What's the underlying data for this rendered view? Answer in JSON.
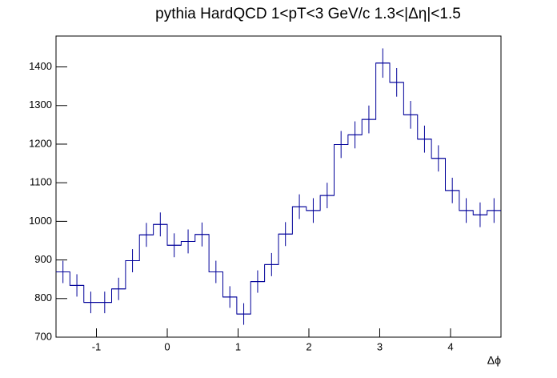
{
  "chart_data": {
    "type": "histogram",
    "title": "pythia HardQCD 1<pT<3 GeV/c 1.3<|Δη|<1.5",
    "x_label": "Δϕ",
    "bins": [
      -1.5708,
      -1.3744,
      -1.1781,
      -0.9817,
      -0.7854,
      -0.589,
      -0.3927,
      -0.1963,
      0,
      0.1963,
      0.3927,
      0.589,
      0.7854,
      0.9817,
      1.1781,
      1.3744,
      1.5708,
      1.7671,
      1.9635,
      2.1598,
      2.3562,
      2.5525,
      2.7489,
      2.9452,
      3.1416,
      3.3379,
      3.5343,
      3.7306,
      3.927,
      4.1233,
      4.3197,
      4.516,
      4.7124
    ],
    "values": [
      869,
      834,
      790,
      790,
      825,
      898,
      965,
      992,
      938,
      948,
      966,
      869,
      804,
      760,
      844,
      888,
      967,
      1038,
      1028,
      1067,
      1199,
      1224,
      1264,
      1410,
      1360,
      1276,
      1213,
      1163,
      1080,
      1028,
      1017,
      1028
    ],
    "errors": [
      29,
      29,
      28,
      28,
      29,
      30,
      31,
      31,
      31,
      31,
      31,
      29,
      28,
      28,
      29,
      30,
      31,
      32,
      32,
      33,
      35,
      35,
      36,
      38,
      37,
      36,
      35,
      34,
      33,
      32,
      32,
      32
    ],
    "color": "#000099",
    "xlim": [
      -1.5708,
      4.7124
    ],
    "xticks": [
      -1,
      0,
      1,
      2,
      3,
      4
    ],
    "ylim": [
      700,
      1480
    ],
    "yticks": [
      700,
      800,
      900,
      1000,
      1100,
      1200,
      1300,
      1400
    ]
  }
}
